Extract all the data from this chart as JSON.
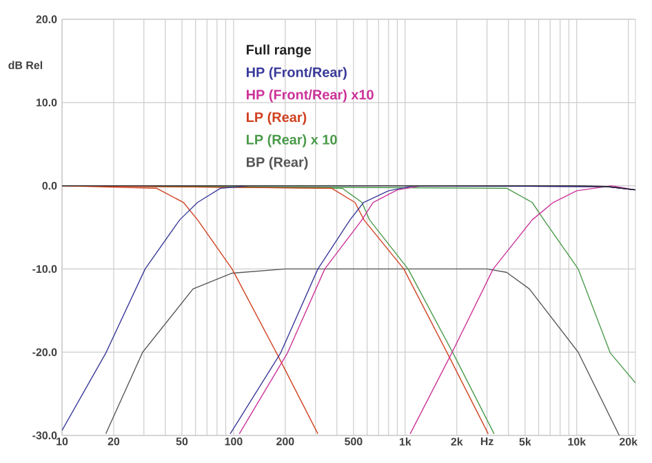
{
  "chart_data": {
    "type": "line",
    "ylabel": "dB Rel",
    "log": "x",
    "grid": true,
    "legend": "top",
    "line_style": "solid",
    "marker": "none",
    "xlim": [
      10,
      22000
    ],
    "ylim": [
      -30,
      20
    ],
    "xticks": [
      10,
      {
        "value": 20,
        "label": "20"
      },
      {
        "value": 30,
        "label": null
      },
      {
        "value": 40,
        "label": null
      },
      50,
      {
        "value": 60,
        "label": null
      },
      {
        "value": 70,
        "label": null
      },
      {
        "value": 80,
        "label": null
      },
      {
        "value": 90,
        "label": null
      },
      100,
      200,
      {
        "value": 300,
        "label": null
      },
      {
        "value": 400,
        "label": null
      },
      500,
      {
        "value": 600,
        "label": null
      },
      {
        "value": 700,
        "label": null
      },
      {
        "value": 800,
        "label": null
      },
      {
        "value": 900,
        "label": null
      },
      {
        "value": 1000,
        "label": "1k"
      },
      {
        "value": 2000,
        "label": "2k"
      },
      {
        "value": 3000,
        "label": "Hz"
      },
      {
        "value": 4000,
        "label": null
      },
      {
        "value": 5000,
        "label": "5k"
      },
      {
        "value": 6000,
        "label": null
      },
      {
        "value": 7000,
        "label": null
      },
      {
        "value": 8000,
        "label": null
      },
      {
        "value": 9000,
        "label": null
      },
      {
        "value": 10000,
        "label": "10k"
      },
      {
        "value": 20000,
        "label": "20k"
      }
    ],
    "yticks": [
      {
        "value": 20,
        "label": "20.0"
      },
      {
        "value": 10,
        "label": "10.0"
      },
      {
        "value": 0,
        "label": "0.0"
      },
      {
        "value": -10,
        "label": "-10.0"
      },
      {
        "value": -20,
        "label": "-20.0"
      },
      {
        "value": -30,
        "label": "-30.0"
      }
    ],
    "series": [
      {
        "name": "Full range",
        "color": "#222222",
        "x": [
          10,
          1000,
          10000,
          15000,
          22000
        ],
        "values": [
          0,
          0,
          0,
          -0.1,
          -0.5
        ]
      },
      {
        "name": "HP (Front/Rear)",
        "color": "#3a3a9a",
        "x": [
          10,
          18,
          30.5,
          48.5,
          61.7,
          84,
          123,
          1000,
          15000,
          22000
        ],
        "values": [
          -29.4,
          -20.1,
          -10,
          -4.1,
          -2,
          -0.3,
          0,
          0,
          -0.1,
          -0.5
        ]
      },
      {
        "color": "#3a3a9a",
        "x": [
          95.6,
          188,
          310,
          477,
          573,
          800,
          1130,
          15000,
          22000
        ],
        "values": [
          -29.8,
          -20.1,
          -10,
          -4.1,
          -2,
          -0.6,
          0,
          -0.1,
          -0.5
        ]
      },
      {
        "name": "HP (Front/Rear) x10",
        "color": "#cc3399",
        "x": [
          108,
          206,
          340,
          560,
          650,
          900,
          1250,
          15000,
          22000
        ],
        "values": [
          -29.8,
          -20.1,
          -10,
          -4.1,
          -2,
          -0.5,
          0,
          -0.1,
          -0.5
        ]
      },
      {
        "color": "#cc3399",
        "x": [
          1070,
          1870,
          3260,
          5500,
          7300,
          10000,
          16000,
          22000
        ],
        "values": [
          -29.8,
          -20.1,
          -10,
          -4.1,
          -2,
          -0.6,
          0,
          -0.5
        ]
      },
      {
        "name": "LP (Rear)",
        "color": "#d04020",
        "x": [
          10,
          35.5,
          51,
          61.7,
          98,
          178,
          310
        ],
        "values": [
          0,
          -0.3,
          -2,
          -4.1,
          -10,
          -20.1,
          -29.8
        ]
      },
      {
        "color": "#d04020",
        "x": [
          10,
          372,
          510,
          575,
          982,
          1760,
          3050
        ],
        "values": [
          0,
          -0.3,
          -2,
          -4.1,
          -10,
          -20.1,
          -29.8
        ]
      },
      {
        "name": "LP (Rear) x 10",
        "color": "#4a9a4a",
        "x": [
          10,
          430,
          560,
          620,
          1040,
          1900,
          3300
        ],
        "values": [
          0,
          -0.3,
          -2,
          -4.1,
          -10,
          -20.1,
          -29.8
        ]
      },
      {
        "color": "#4a9a4a",
        "x": [
          10,
          3900,
          5500,
          6440,
          10200,
          15700,
          22000
        ],
        "values": [
          0,
          -0.3,
          -2,
          -4.1,
          -10,
          -20.1,
          -23.7
        ]
      },
      {
        "name": "BP (Rear)",
        "color": "#555555",
        "x": [
          18,
          29.5,
          58,
          98,
          200,
          1000,
          3000,
          3900,
          5300,
          10200,
          17700
        ],
        "values": [
          -29.8,
          -20,
          -12.4,
          -10.5,
          -10,
          -10,
          -10,
          -10.4,
          -12.4,
          -20,
          -30
        ]
      }
    ]
  }
}
